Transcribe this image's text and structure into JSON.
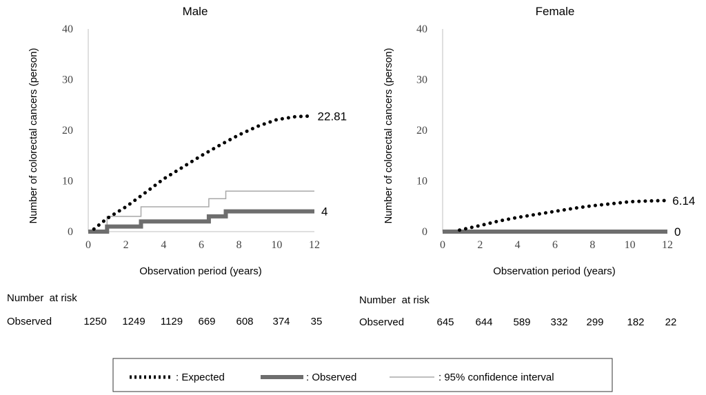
{
  "chart_data": [
    {
      "type": "line",
      "title": "Male",
      "xlabel": "Observation period (years)",
      "ylabel": "Number  of colorectal cancers (person)",
      "xlim": [
        0,
        12
      ],
      "ylim": [
        0,
        40
      ],
      "xticks": [
        0,
        2,
        4,
        6,
        8,
        10,
        12
      ],
      "yticks": [
        0,
        10,
        20,
        30,
        40
      ],
      "series": [
        {
          "name": "Expected",
          "x": [
            0.3,
            1,
            2,
            3,
            4,
            5,
            6,
            7,
            8,
            9,
            10,
            11,
            11.8
          ],
          "y": [
            0.5,
            2.6,
            4.9,
            7.6,
            10.4,
            12.7,
            15,
            17.1,
            19.1,
            20.8,
            22.1,
            22.7,
            22.81
          ],
          "end_label": "22.81"
        },
        {
          "name": "Observed",
          "step": true,
          "x": [
            0,
            1.0,
            1.0,
            2.8,
            2.8,
            6.4,
            6.4,
            7.3,
            7.3,
            12
          ],
          "y": [
            0,
            0,
            1,
            1,
            2,
            2,
            3,
            3,
            4,
            4
          ],
          "end_label": "4"
        },
        {
          "name": "95% confidence interval",
          "step": true,
          "x": [
            0,
            1.0,
            1.0,
            2.8,
            2.8,
            6.4,
            6.4,
            7.3,
            7.3,
            12
          ],
          "y": [
            0,
            0,
            3,
            3,
            4.9,
            4.9,
            6.5,
            6.5,
            8,
            8
          ]
        }
      ],
      "risk_table": {
        "header": "Number  at risk",
        "row_label": "Observed",
        "values": [
          "1250",
          "1249",
          "1129",
          "669",
          "608",
          "374",
          "35"
        ]
      }
    },
    {
      "type": "line",
      "title": "Female",
      "xlabel": "Observation period (years)",
      "ylabel": "Number  of colorectal cancers (person)",
      "xlim": [
        0,
        12
      ],
      "ylim": [
        0,
        40
      ],
      "xticks": [
        0,
        2,
        4,
        6,
        8,
        10,
        12
      ],
      "yticks": [
        0,
        10,
        20,
        30,
        40
      ],
      "series": [
        {
          "name": "Expected",
          "x": [
            0.9,
            2,
            3,
            4,
            5,
            6,
            7,
            8,
            9,
            10,
            11,
            11.9
          ],
          "y": [
            0.3,
            1.2,
            2.1,
            2.8,
            3.4,
            4,
            4.6,
            5.1,
            5.5,
            5.9,
            6.05,
            6.14
          ],
          "end_label": "6.14"
        },
        {
          "name": "Observed",
          "step": true,
          "x": [
            0,
            12
          ],
          "y": [
            0,
            0
          ],
          "end_label": "0"
        }
      ],
      "risk_table": {
        "header": "Number  at risk",
        "row_label": "Observed",
        "values": [
          "645",
          "644",
          "589",
          "332",
          "299",
          "182",
          "22"
        ]
      }
    }
  ],
  "legend": {
    "items": [
      {
        "marker": "dotted",
        "label": ": Expected"
      },
      {
        "marker": "thick",
        "label": ": Observed"
      },
      {
        "marker": "thin",
        "label": ": 95% confidence interval"
      }
    ]
  },
  "colors": {
    "expected": "#000000",
    "observed": "#6e6e6e",
    "ci": "#a8a8a8",
    "axis": "#bfbfbf"
  }
}
